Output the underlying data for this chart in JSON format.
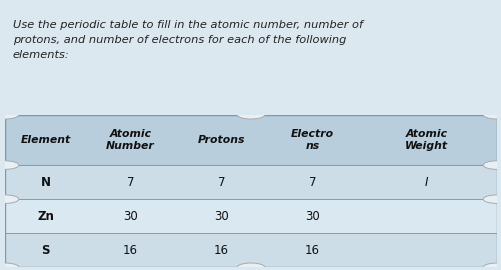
{
  "title_lines": [
    "Use the periodic table to fill in the atomic number, number of",
    "protons, and number of electrons for each of the following",
    "elements:"
  ],
  "top_stripe_color": "#2e5f8a",
  "title_bg_color": "#dce8f0",
  "title_text_color": "#222222",
  "table_header": [
    "Element",
    "Atomic\nNumber",
    "Protons",
    "Electro\nns",
    "Atomic\nWeight"
  ],
  "table_header_bg": "#b8cedd",
  "table_rows": [
    [
      "N",
      "7",
      "7",
      "7",
      "I"
    ],
    [
      "Zn",
      "30",
      "30",
      "30",
      ""
    ],
    [
      "S",
      "16",
      "16",
      "16",
      ""
    ]
  ],
  "row_bg_even": "#ccdde8",
  "row_bg_odd": "#dae8f2",
  "table_border_color": "#7a9ab0",
  "table_text_color": "#111111",
  "circle_color": "#e8f0f5",
  "circle_edge_color": "#aaaaaa",
  "fig_bg": "#dce8f0"
}
